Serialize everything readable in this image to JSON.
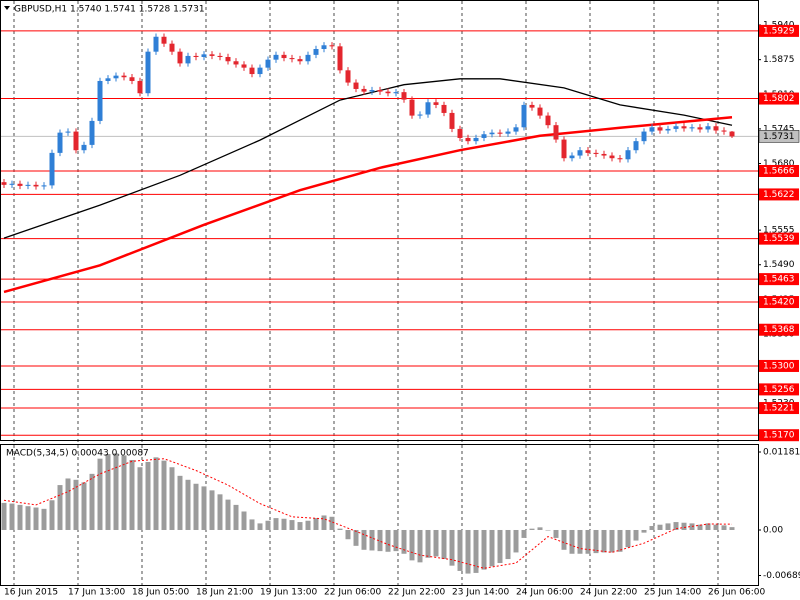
{
  "chart_data": [
    {
      "type": "candlestick",
      "title": "GBPUSD,H1  1.5740 1.5741 1.5728 1.5731",
      "up_color": "#2f7fd6",
      "down_color": "#e3262e",
      "open": [
        1.5645,
        1.564,
        1.5642,
        1.5638,
        1.564,
        1.5637,
        1.5639,
        1.57,
        1.5738,
        1.574,
        1.5705,
        1.5715,
        1.576,
        1.5835,
        1.584,
        1.5845,
        1.5842,
        1.5835,
        1.5812,
        1.589,
        1.5918,
        1.5905,
        1.589,
        1.5868,
        1.5882,
        1.588,
        1.5885,
        1.5882,
        1.588,
        1.5872,
        1.5866,
        1.586,
        1.5848,
        1.586,
        1.5875,
        1.5884,
        1.5878,
        1.5876,
        1.5872,
        1.5884,
        1.5895,
        1.5902,
        1.59,
        1.5855,
        1.5832,
        1.582,
        1.5815,
        1.5818,
        1.5815,
        1.5812,
        1.5814,
        1.58,
        1.577,
        1.5772,
        1.5795,
        1.579,
        1.5775,
        1.5745,
        1.5728,
        1.5722,
        1.5728,
        1.5735,
        1.5738,
        1.5736,
        1.574,
        1.5748,
        1.579,
        1.5785,
        1.577,
        1.5752,
        1.5725,
        1.569,
        1.5695,
        1.5705,
        1.57,
        1.5698,
        1.5695,
        1.569,
        1.5688,
        1.5705,
        1.5722,
        1.574,
        1.5748,
        1.5742,
        1.5745,
        1.575,
        1.5746,
        1.5748,
        1.5744,
        1.575,
        1.5742,
        1.574
      ],
      "high": [
        1.5651,
        1.5648,
        1.5648,
        1.5646,
        1.5646,
        1.5645,
        1.5706,
        1.5744,
        1.5746,
        1.5746,
        1.5721,
        1.5766,
        1.5841,
        1.5846,
        1.5851,
        1.5851,
        1.5848,
        1.5841,
        1.5896,
        1.5924,
        1.5924,
        1.5911,
        1.5896,
        1.5888,
        1.5888,
        1.5891,
        1.5891,
        1.5888,
        1.5886,
        1.5878,
        1.5872,
        1.5866,
        1.5866,
        1.5881,
        1.589,
        1.589,
        1.5884,
        1.5882,
        1.589,
        1.5901,
        1.5908,
        1.5908,
        1.5906,
        1.5861,
        1.5838,
        1.5826,
        1.5824,
        1.5824,
        1.5821,
        1.582,
        1.582,
        1.5806,
        1.5778,
        1.5801,
        1.5801,
        1.5796,
        1.5781,
        1.5751,
        1.5734,
        1.5734,
        1.5741,
        1.5744,
        1.5744,
        1.5746,
        1.5754,
        1.5796,
        1.5796,
        1.5791,
        1.5776,
        1.5758,
        1.5731,
        1.5701,
        1.5711,
        1.5711,
        1.5706,
        1.5704,
        1.5701,
        1.5696,
        1.5711,
        1.5728,
        1.5746,
        1.5754,
        1.5754,
        1.5751,
        1.5756,
        1.5756,
        1.5754,
        1.5754,
        1.5756,
        1.5756,
        1.5748,
        1.5741
      ],
      "low": [
        1.5634,
        1.5634,
        1.5632,
        1.5632,
        1.5631,
        1.5631,
        1.5633,
        1.5694,
        1.5732,
        1.5699,
        1.5699,
        1.5709,
        1.5754,
        1.5829,
        1.5834,
        1.5836,
        1.5829,
        1.5806,
        1.5806,
        1.5884,
        1.5899,
        1.5884,
        1.5862,
        1.5862,
        1.5874,
        1.5874,
        1.5876,
        1.5874,
        1.5866,
        1.586,
        1.5854,
        1.5842,
        1.5842,
        1.5854,
        1.5869,
        1.5872,
        1.587,
        1.5866,
        1.5866,
        1.5878,
        1.5889,
        1.5894,
        1.5849,
        1.5826,
        1.5814,
        1.5809,
        1.5809,
        1.5809,
        1.5806,
        1.5806,
        1.5794,
        1.5764,
        1.5764,
        1.5766,
        1.5784,
        1.5769,
        1.5739,
        1.5722,
        1.5716,
        1.5716,
        1.5722,
        1.5729,
        1.573,
        1.573,
        1.5734,
        1.5742,
        1.5779,
        1.5764,
        1.5746,
        1.5719,
        1.5684,
        1.5684,
        1.5689,
        1.5694,
        1.5692,
        1.5689,
        1.5684,
        1.5682,
        1.5682,
        1.5699,
        1.5716,
        1.5734,
        1.5736,
        1.5736,
        1.5739,
        1.574,
        1.574,
        1.5738,
        1.5738,
        1.5736,
        1.5734,
        1.5728
      ],
      "close": [
        1.564,
        1.5642,
        1.5638,
        1.564,
        1.5637,
        1.5639,
        1.57,
        1.5738,
        1.574,
        1.5705,
        1.5715,
        1.576,
        1.5835,
        1.584,
        1.5845,
        1.5842,
        1.5835,
        1.5812,
        1.589,
        1.5918,
        1.5905,
        1.589,
        1.5868,
        1.5882,
        1.588,
        1.5885,
        1.5882,
        1.588,
        1.5872,
        1.5866,
        1.586,
        1.5848,
        1.586,
        1.5875,
        1.5884,
        1.5878,
        1.5876,
        1.5872,
        1.5884,
        1.5895,
        1.5902,
        1.59,
        1.5855,
        1.5832,
        1.582,
        1.5815,
        1.5818,
        1.5815,
        1.5812,
        1.5814,
        1.58,
        1.577,
        1.5772,
        1.5795,
        1.579,
        1.5775,
        1.5745,
        1.5728,
        1.5722,
        1.5728,
        1.5735,
        1.5738,
        1.5736,
        1.574,
        1.5748,
        1.579,
        1.5785,
        1.577,
        1.5752,
        1.5725,
        1.569,
        1.5695,
        1.5705,
        1.57,
        1.5698,
        1.5695,
        1.569,
        1.5688,
        1.5705,
        1.5722,
        1.574,
        1.5748,
        1.5742,
        1.5745,
        1.575,
        1.5746,
        1.5748,
        1.5744,
        1.575,
        1.5742,
        1.574,
        1.5731
      ],
      "overlays": [
        {
          "color": "#000000",
          "x": [
            0,
            12,
            22,
            32,
            42,
            50,
            57,
            62,
            70,
            77,
            85,
            91
          ],
          "values": [
            1.554,
            1.5602,
            1.5658,
            1.5724,
            1.5799,
            1.5828,
            1.5839,
            1.5839,
            1.5822,
            1.579,
            1.5771,
            1.5752
          ]
        },
        {
          "color": "#ff0000",
          "x": [
            0,
            12,
            25,
            37,
            47,
            57,
            67,
            77,
            91
          ],
          "values": [
            1.5439,
            1.5489,
            1.5565,
            1.563,
            1.5672,
            1.5705,
            1.5732,
            1.5747,
            1.5767
          ]
        }
      ],
      "levels": {
        "color": "#ff0000",
        "values": [
          1.5929,
          1.5802,
          1.5666,
          1.5622,
          1.5539,
          1.5463,
          1.542,
          1.5368,
          1.53,
          1.5256,
          1.5221,
          1.517
        ],
        "value_labels": [
          "1.5929",
          "1.5802",
          "1.5666",
          "1.5622",
          "1.5539",
          "1.5463",
          "1.5420",
          "1.5368",
          "1.5300",
          "1.5256",
          "1.5221",
          "1.5170"
        ]
      },
      "current_price": {
        "value": 1.5731,
        "label": "1.5731"
      },
      "xlim": [
        -0.5,
        94.25
      ],
      "xticks": [
        {
          "value": 0,
          "label": "16 Jun 2015"
        },
        {
          "value": 8,
          "label": "17 Jun 13:00"
        },
        {
          "value": 16,
          "label": "18 Jun 05:00"
        },
        {
          "value": 24,
          "label": "18 Jun 21:00"
        },
        {
          "value": 32,
          "label": "19 Jun 13:00"
        },
        {
          "value": 40,
          "label": "22 Jun 06:00"
        },
        {
          "value": 48,
          "label": "22 Jun 22:00"
        },
        {
          "value": 56,
          "label": "23 Jun 14:00"
        },
        {
          "value": 64,
          "label": "24 Jun 06:00"
        },
        {
          "value": 72,
          "label": "24 Jun 22:00"
        },
        {
          "value": 80,
          "label": "25 Jun 14:00"
        },
        {
          "value": 88,
          "label": "26 Jun 06:00"
        }
      ],
      "ylim": [
        1.5161,
        1.5987
      ],
      "yticks": [
        {
          "value": 1.594,
          "label": "1.5940"
        },
        1.5875,
        {
          "value": 1.581,
          "label": "1.5810"
        },
        1.5745,
        {
          "value": 1.568,
          "label": "1.5680"
        },
        {
          "value": 1.562,
          "label": "1.5620"
        },
        1.5555,
        {
          "value": 1.549,
          "label": "1.5490"
        },
        1.5425,
        {
          "value": 1.536,
          "label": "1.5360"
        },
        1.5295,
        {
          "value": 1.523,
          "label": "1.5230"
        }
      ]
    },
    {
      "type": "macd",
      "title": "MACD(5,34,5) 0.00043 0.00087",
      "color": "#9c9c9c",
      "values": [
        0.0041,
        0.004,
        0.0038,
        0.0036,
        0.0034,
        0.0032,
        0.0045,
        0.0068,
        0.0078,
        0.0076,
        0.0072,
        0.0085,
        0.0108,
        0.0115,
        0.0116,
        0.0113,
        0.0106,
        0.0095,
        0.0103,
        0.011,
        0.0105,
        0.0095,
        0.0082,
        0.0076,
        0.007,
        0.0066,
        0.006,
        0.0054,
        0.0046,
        0.0038,
        0.0028,
        0.0016,
        0.001,
        0.0014,
        0.0018,
        0.0017,
        0.0015,
        0.0012,
        0.0014,
        0.0018,
        0.0022,
        0.002,
        0.0002,
        -0.0014,
        -0.0024,
        -0.003,
        -0.0031,
        -0.0032,
        -0.0033,
        -0.0032,
        -0.0036,
        -0.0046,
        -0.0049,
        -0.0042,
        -0.004,
        -0.0044,
        -0.0054,
        -0.0062,
        -0.0066,
        -0.0065,
        -0.006,
        -0.0055,
        -0.005,
        -0.0044,
        -0.0034,
        -0.0012,
        0.0002,
        0.0004,
        0,
        -0.0012,
        -0.003,
        -0.0036,
        -0.0036,
        -0.0036,
        -0.0035,
        -0.0034,
        -0.0034,
        -0.0033,
        -0.0026,
        -0.0016,
        -0.0004,
        0.0006,
        0.0008,
        0.001,
        0.0012,
        0.0011,
        0.001,
        0.0008,
        0.001,
        0.0008,
        0.0007,
        0.00043
      ],
      "signal": {
        "color": "#ff0000",
        "x": [
          0,
          4,
          8,
          12,
          16,
          20,
          24,
          28,
          32,
          36,
          40,
          44,
          48,
          52,
          56,
          60,
          64,
          68,
          72,
          76,
          80,
          84,
          88,
          91
        ],
        "values": [
          0.0045,
          0.0038,
          0.0058,
          0.0085,
          0.0104,
          0.0108,
          0.009,
          0.0068,
          0.004,
          0.002,
          0.0017,
          -0.0002,
          -0.0022,
          -0.0038,
          -0.0045,
          -0.0058,
          -0.005,
          -0.001,
          -0.0028,
          -0.0034,
          -0.002,
          0.0002,
          0.0009,
          0.00087
        ]
      },
      "xlim": [
        -0.5,
        94.25
      ],
      "ylim": [
        -0.00833,
        0.01302
      ],
      "yticks": [
        0.01181,
        {
          "value": 0,
          "label": "0.00"
        },
        -0.00689
      ]
    }
  ]
}
